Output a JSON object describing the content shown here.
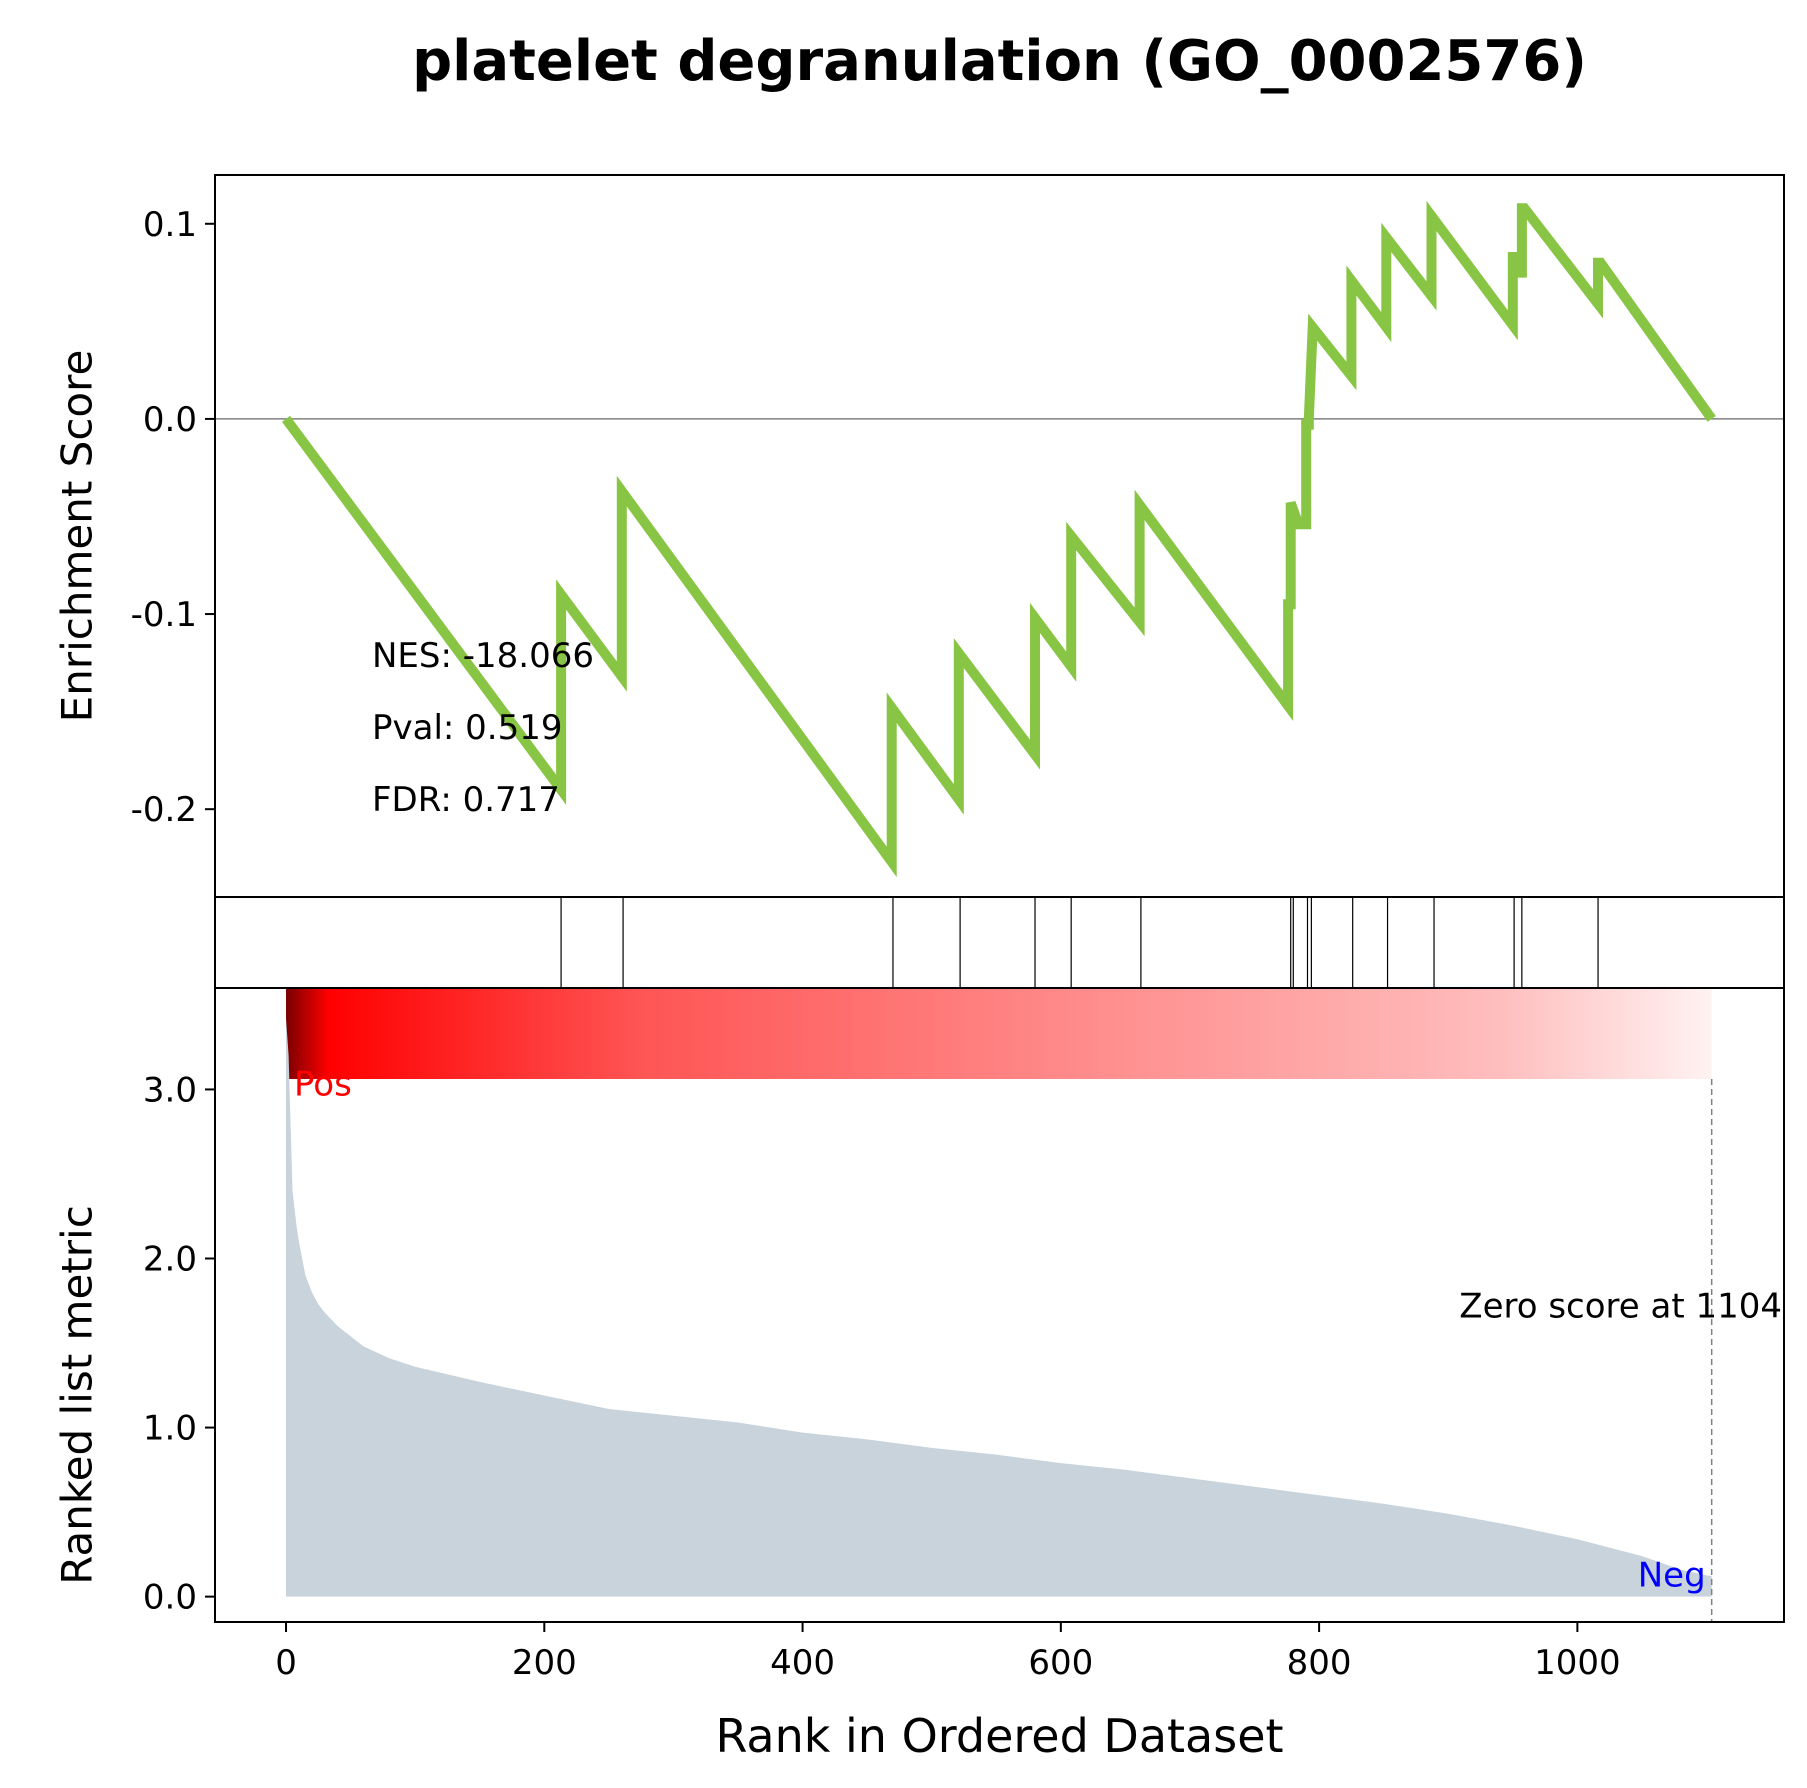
{
  "title": "platelet degranulation (GO_0002576)",
  "colors": {
    "es_line": "#88c544",
    "metric_fill": "#c9d3dc",
    "pos": "#ff0000",
    "neg": "#0000ff",
    "frame": "#000000",
    "zero_line": "#808080"
  },
  "chart_data": [
    {
      "panel": "enrichment",
      "type": "line",
      "ylabel": "Enrichment Score",
      "ylim": [
        -0.245,
        0.125
      ],
      "yticks": [
        0.1,
        0.0,
        -0.1,
        -0.2
      ],
      "ytick_labels": [
        "0.1",
        "0.0",
        "-0.1",
        "-0.2"
      ],
      "xlim": [
        -55,
        1160
      ],
      "annotations": [
        "NES: -18.066",
        "Pval: 0.519",
        "FDR: 0.717"
      ],
      "x": [
        0,
        213,
        213,
        260,
        260,
        469,
        469,
        521,
        521,
        580,
        580,
        608,
        608,
        661,
        661,
        776,
        776,
        778,
        778,
        784,
        784,
        790,
        790,
        792,
        792,
        795,
        795,
        825,
        825,
        852,
        852,
        887,
        887,
        950,
        950,
        953,
        953,
        957,
        957,
        959,
        959,
        1016,
        1016,
        1018,
        1018,
        1104
      ],
      "y": [
        0.0,
        -0.19,
        -0.09,
        -0.132,
        -0.037,
        -0.227,
        -0.148,
        -0.195,
        -0.12,
        -0.172,
        -0.102,
        -0.127,
        -0.06,
        -0.104,
        -0.044,
        -0.147,
        -0.095,
        -0.095,
        -0.043,
        -0.054,
        -0.054,
        -0.054,
        -0.003,
        -0.003,
        0.0,
        0.047,
        0.047,
        0.022,
        0.071,
        0.047,
        0.093,
        0.063,
        0.104,
        0.048,
        0.083,
        0.083,
        0.075,
        0.075,
        0.108,
        0.108,
        0.108,
        0.059,
        0.08,
        0.08,
        0.08,
        0.0
      ]
    },
    {
      "panel": "hits",
      "type": "barcode",
      "hits": [
        213,
        261,
        470,
        522,
        580,
        608,
        662,
        778,
        780,
        791,
        794,
        826,
        853,
        889,
        951,
        957,
        1016
      ]
    },
    {
      "panel": "ranked-metric",
      "type": "area",
      "ylabel": "Ranked list metric",
      "xlabel": "Rank in Ordered Dataset",
      "ylim": [
        -0.15,
        3.6
      ],
      "yticks": [
        0.0,
        1.0,
        2.0,
        3.0
      ],
      "ytick_labels": [
        "0.0",
        "1.0",
        "2.0",
        "3.0"
      ],
      "xlim": [
        -55,
        1160
      ],
      "xticks": [
        0,
        200,
        400,
        600,
        800,
        1000
      ],
      "xtick_labels": [
        "0",
        "200",
        "400",
        "600",
        "800",
        "1000"
      ],
      "pos_label": "Pos",
      "neg_label": "Neg",
      "zero_score_label": "Zero score at 1104",
      "zero_score_at": 1104,
      "x": [
        0,
        2,
        5,
        8,
        10,
        15,
        20,
        25,
        30,
        40,
        50,
        60,
        80,
        100,
        150,
        200,
        250,
        300,
        350,
        400,
        450,
        500,
        550,
        600,
        650,
        700,
        750,
        800,
        850,
        900,
        950,
        1000,
        1050,
        1080,
        1104
      ],
      "y": [
        3.42,
        3.2,
        2.4,
        2.2,
        2.1,
        1.9,
        1.8,
        1.73,
        1.68,
        1.6,
        1.54,
        1.48,
        1.41,
        1.36,
        1.27,
        1.19,
        1.11,
        1.07,
        1.03,
        0.97,
        0.93,
        0.88,
        0.84,
        0.79,
        0.75,
        0.7,
        0.65,
        0.6,
        0.55,
        0.49,
        0.42,
        0.34,
        0.24,
        0.16,
        0.12
      ]
    }
  ]
}
